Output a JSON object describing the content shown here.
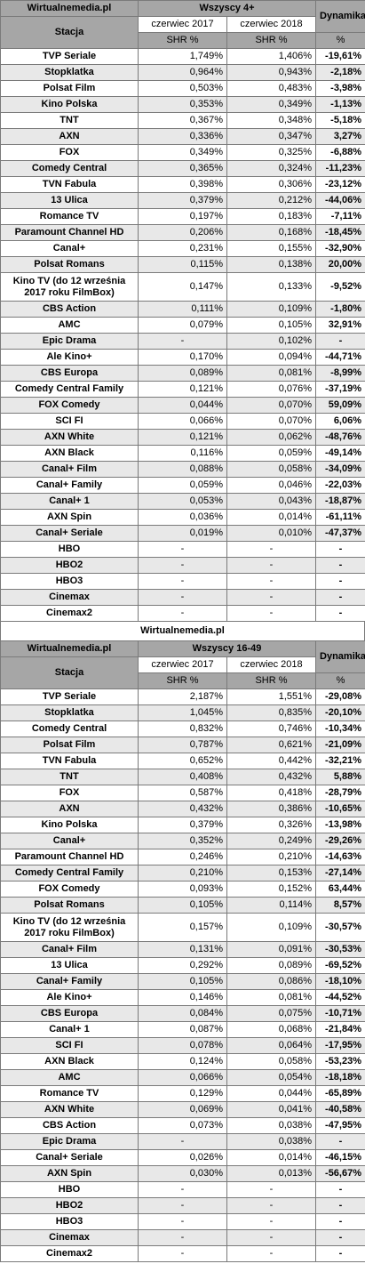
{
  "t1": {
    "site": "Wirtualnemedia.pl",
    "group": "Wszyscy 4+",
    "station_label": "Stacja",
    "col1": "czerwiec 2017",
    "col2": "czerwiec 2018",
    "dyn": "Dynamika",
    "shr": "SHR %",
    "pct": "%",
    "rows": [
      [
        "TVP Seriale",
        "1,749%",
        "1,406%",
        "-19,61%"
      ],
      [
        "Stopklatka",
        "0,964%",
        "0,943%",
        "-2,18%"
      ],
      [
        "Polsat Film",
        "0,503%",
        "0,483%",
        "-3,98%"
      ],
      [
        "Kino Polska",
        "0,353%",
        "0,349%",
        "-1,13%"
      ],
      [
        "TNT",
        "0,367%",
        "0,348%",
        "-5,18%"
      ],
      [
        "AXN",
        "0,336%",
        "0,347%",
        "3,27%"
      ],
      [
        "FOX",
        "0,349%",
        "0,325%",
        "-6,88%"
      ],
      [
        "Comedy Central",
        "0,365%",
        "0,324%",
        "-11,23%"
      ],
      [
        "TVN Fabula",
        "0,398%",
        "0,306%",
        "-23,12%"
      ],
      [
        "13 Ulica",
        "0,379%",
        "0,212%",
        "-44,06%"
      ],
      [
        "Romance TV",
        "0,197%",
        "0,183%",
        "-7,11%"
      ],
      [
        "Paramount Channel HD",
        "0,206%",
        "0,168%",
        "-18,45%"
      ],
      [
        "Canal+",
        "0,231%",
        "0,155%",
        "-32,90%"
      ],
      [
        "Polsat Romans",
        "0,115%",
        "0,138%",
        "20,00%"
      ],
      [
        "Kino TV (do 12 września 2017 roku FilmBox)",
        "0,147%",
        "0,133%",
        "-9,52%"
      ],
      [
        "CBS Action",
        "0,111%",
        "0,109%",
        "-1,80%"
      ],
      [
        "AMC",
        "0,079%",
        "0,105%",
        "32,91%"
      ],
      [
        "Epic Drama",
        "-",
        "0,102%",
        "-"
      ],
      [
        "Ale Kino+",
        "0,170%",
        "0,094%",
        "-44,71%"
      ],
      [
        "CBS Europa",
        "0,089%",
        "0,081%",
        "-8,99%"
      ],
      [
        "Comedy Central Family",
        "0,121%",
        "0,076%",
        "-37,19%"
      ],
      [
        "FOX Comedy",
        "0,044%",
        "0,070%",
        "59,09%"
      ],
      [
        "SCI FI",
        "0,066%",
        "0,070%",
        "6,06%"
      ],
      [
        "AXN White",
        "0,121%",
        "0,062%",
        "-48,76%"
      ],
      [
        "AXN Black",
        "0,116%",
        "0,059%",
        "-49,14%"
      ],
      [
        "Canal+ Film",
        "0,088%",
        "0,058%",
        "-34,09%"
      ],
      [
        "Canal+ Family",
        "0,059%",
        "0,046%",
        "-22,03%"
      ],
      [
        "Canal+ 1",
        "0,053%",
        "0,043%",
        "-18,87%"
      ],
      [
        "AXN Spin",
        "0,036%",
        "0,014%",
        "-61,11%"
      ],
      [
        "Canal+ Seriale",
        "0,019%",
        "0,010%",
        "-47,37%"
      ],
      [
        "HBO",
        "-",
        "-",
        "-"
      ],
      [
        "HBO2",
        "-",
        "-",
        "-"
      ],
      [
        "HBO3",
        "-",
        "-",
        "-"
      ],
      [
        "Cinemax",
        "-",
        "-",
        "-"
      ],
      [
        "Cinemax2",
        "-",
        "-",
        "-"
      ]
    ]
  },
  "separator": "Wirtualnemedia.pl",
  "t2": {
    "site": "Wirtualnemedia.pl",
    "group": "Wszyscy 16-49",
    "station_label": "Stacja",
    "col1": "czerwiec 2017",
    "col2": "czerwiec 2018",
    "dyn": "Dynamika",
    "shr": "SHR %",
    "pct": "%",
    "rows": [
      [
        "TVP Seriale",
        "2,187%",
        "1,551%",
        "-29,08%"
      ],
      [
        "Stopklatka",
        "1,045%",
        "0,835%",
        "-20,10%"
      ],
      [
        "Comedy Central",
        "0,832%",
        "0,746%",
        "-10,34%"
      ],
      [
        "Polsat Film",
        "0,787%",
        "0,621%",
        "-21,09%"
      ],
      [
        "TVN Fabula",
        "0,652%",
        "0,442%",
        "-32,21%"
      ],
      [
        "TNT",
        "0,408%",
        "0,432%",
        "5,88%"
      ],
      [
        "FOX",
        "0,587%",
        "0,418%",
        "-28,79%"
      ],
      [
        "AXN",
        "0,432%",
        "0,386%",
        "-10,65%"
      ],
      [
        "Kino Polska",
        "0,379%",
        "0,326%",
        "-13,98%"
      ],
      [
        "Canal+",
        "0,352%",
        "0,249%",
        "-29,26%"
      ],
      [
        "Paramount Channel HD",
        "0,246%",
        "0,210%",
        "-14,63%"
      ],
      [
        "Comedy Central Family",
        "0,210%",
        "0,153%",
        "-27,14%"
      ],
      [
        "FOX Comedy",
        "0,093%",
        "0,152%",
        "63,44%"
      ],
      [
        "Polsat Romans",
        "0,105%",
        "0,114%",
        "8,57%"
      ],
      [
        "Kino TV (do 12 września 2017 roku FilmBox)",
        "0,157%",
        "0,109%",
        "-30,57%"
      ],
      [
        "Canal+ Film",
        "0,131%",
        "0,091%",
        "-30,53%"
      ],
      [
        "13 Ulica",
        "0,292%",
        "0,089%",
        "-69,52%"
      ],
      [
        "Canal+ Family",
        "0,105%",
        "0,086%",
        "-18,10%"
      ],
      [
        "Ale Kino+",
        "0,146%",
        "0,081%",
        "-44,52%"
      ],
      [
        "CBS Europa",
        "0,084%",
        "0,075%",
        "-10,71%"
      ],
      [
        "Canal+ 1",
        "0,087%",
        "0,068%",
        "-21,84%"
      ],
      [
        "SCI FI",
        "0,078%",
        "0,064%",
        "-17,95%"
      ],
      [
        "AXN Black",
        "0,124%",
        "0,058%",
        "-53,23%"
      ],
      [
        "AMC",
        "0,066%",
        "0,054%",
        "-18,18%"
      ],
      [
        "Romance TV",
        "0,129%",
        "0,044%",
        "-65,89%"
      ],
      [
        "AXN White",
        "0,069%",
        "0,041%",
        "-40,58%"
      ],
      [
        "CBS Action",
        "0,073%",
        "0,038%",
        "-47,95%"
      ],
      [
        "Epic Drama",
        "-",
        "0,038%",
        "-"
      ],
      [
        "Canal+ Seriale",
        "0,026%",
        "0,014%",
        "-46,15%"
      ],
      [
        "AXN Spin",
        "0,030%",
        "0,013%",
        "-56,67%"
      ],
      [
        "HBO",
        "-",
        "-",
        "-"
      ],
      [
        "HBO2",
        "-",
        "-",
        "-"
      ],
      [
        "HBO3",
        "-",
        "-",
        "-"
      ],
      [
        "Cinemax",
        "-",
        "-",
        "-"
      ],
      [
        "Cinemax2",
        "-",
        "-",
        "-"
      ]
    ]
  }
}
